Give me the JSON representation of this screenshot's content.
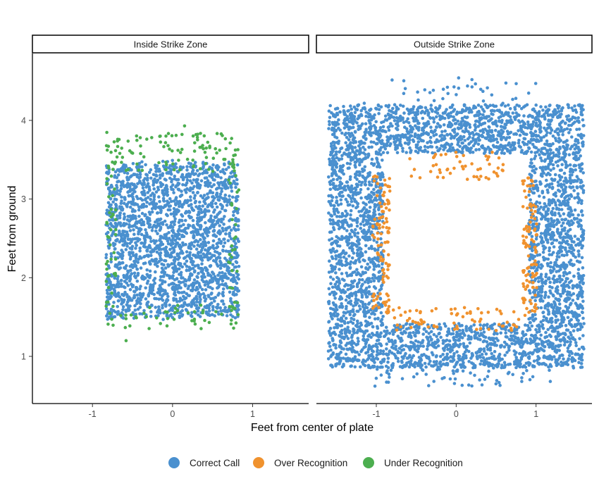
{
  "chart_data": {
    "type": "scatter",
    "facets": [
      "Inside Strike Zone",
      "Outside Strike Zone"
    ],
    "xlabel": "Feet from center of plate",
    "ylabel": "Feet from ground",
    "xlim": [
      -1.75,
      1.7
    ],
    "ylim": [
      0.4,
      4.85
    ],
    "x_ticks": [
      -1,
      0,
      1
    ],
    "x_tick_labels": [
      "-1",
      "0",
      "1"
    ],
    "y_ticks": [
      1,
      2,
      3,
      4
    ],
    "y_tick_labels": [
      "1",
      "2",
      "3",
      "4"
    ],
    "grid": false,
    "legend_position": "bottom",
    "series": [
      {
        "name": "Correct Call",
        "color": "#4a90cf"
      },
      {
        "name": "Over Recognition",
        "color": "#f0922e"
      },
      {
        "name": "Under Recognition",
        "color": "#4cae4f"
      }
    ],
    "strike_zone": {
      "x": [
        -0.83,
        0.83
      ],
      "y": [
        1.5,
        3.5
      ]
    },
    "facet_ranges": {
      "Inside Strike Zone": {
        "x": [
          -0.83,
          0.83
        ],
        "y": [
          1.2,
          3.95
        ]
      },
      "Outside Strike Zone": {
        "x": [
          -1.6,
          1.6
        ],
        "y": [
          0.6,
          4.6
        ]
      }
    },
    "point_counts": {
      "Inside Strike Zone": {
        "Correct Call": 2200,
        "Under Recognition": 230
      },
      "Outside Strike Zone": {
        "Correct Call": 4300,
        "Over Recognition": 330
      }
    },
    "approximate_points": true
  }
}
